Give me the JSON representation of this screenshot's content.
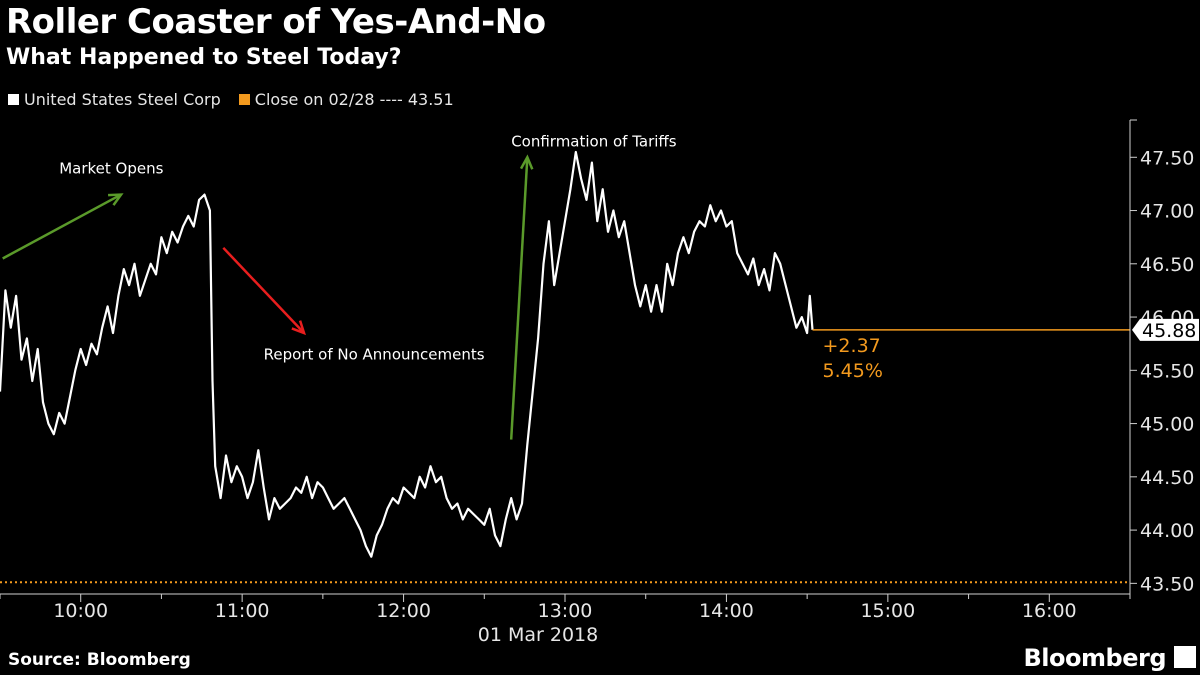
{
  "header": {
    "title": "Roller Coaster of Yes-And-No",
    "subtitle": "What Happened to Steel Today?"
  },
  "legend": {
    "series_label": "United States Steel Corp",
    "close_label": "Close on 02/28 ---- 43.51"
  },
  "footer": {
    "source": "Source: Bloomberg",
    "brand": "Bloomberg"
  },
  "colors": {
    "series": "#ffffff",
    "close_line": "#f39a1e",
    "arrow_up": "#5a9a2a",
    "arrow_down": "#e81e1e",
    "background": "#000000"
  },
  "chart_data": {
    "type": "line",
    "date_label": "01 Mar 2018",
    "x_unit": "time of day",
    "x_range": [
      "09:30",
      "16:30"
    ],
    "y_range": [
      43.4,
      47.85
    ],
    "x_ticks": [
      "10:00",
      "11:00",
      "12:00",
      "13:00",
      "14:00",
      "15:00",
      "16:00"
    ],
    "y_ticks": [
      "43.50",
      "44.00",
      "44.50",
      "45.00",
      "45.50",
      "46.00",
      "46.50",
      "47.00",
      "47.50"
    ],
    "series": [
      {
        "name": "United States Steel Corp",
        "points": [
          [
            "09:30",
            45.3
          ],
          [
            "09:32",
            46.25
          ],
          [
            "09:34",
            45.9
          ],
          [
            "09:36",
            46.2
          ],
          [
            "09:38",
            45.6
          ],
          [
            "09:40",
            45.8
          ],
          [
            "09:42",
            45.4
          ],
          [
            "09:44",
            45.7
          ],
          [
            "09:46",
            45.2
          ],
          [
            "09:48",
            45.0
          ],
          [
            "09:50",
            44.9
          ],
          [
            "09:52",
            45.1
          ],
          [
            "09:54",
            45.0
          ],
          [
            "09:56",
            45.25
          ],
          [
            "09:58",
            45.5
          ],
          [
            "10:00",
            45.7
          ],
          [
            "10:02",
            45.55
          ],
          [
            "10:04",
            45.75
          ],
          [
            "10:06",
            45.65
          ],
          [
            "10:08",
            45.9
          ],
          [
            "10:10",
            46.1
          ],
          [
            "10:12",
            45.85
          ],
          [
            "10:14",
            46.2
          ],
          [
            "10:16",
            46.45
          ],
          [
            "10:18",
            46.3
          ],
          [
            "10:20",
            46.5
          ],
          [
            "10:22",
            46.2
          ],
          [
            "10:24",
            46.35
          ],
          [
            "10:26",
            46.5
          ],
          [
            "10:28",
            46.4
          ],
          [
            "10:30",
            46.75
          ],
          [
            "10:32",
            46.6
          ],
          [
            "10:34",
            46.8
          ],
          [
            "10:36",
            46.7
          ],
          [
            "10:38",
            46.85
          ],
          [
            "10:40",
            46.95
          ],
          [
            "10:42",
            46.85
          ],
          [
            "10:44",
            47.1
          ],
          [
            "10:46",
            47.15
          ],
          [
            "10:48",
            47.0
          ],
          [
            "10:49",
            45.4
          ],
          [
            "10:50",
            44.6
          ],
          [
            "10:52",
            44.3
          ],
          [
            "10:54",
            44.7
          ],
          [
            "10:56",
            44.45
          ],
          [
            "10:58",
            44.6
          ],
          [
            "11:00",
            44.5
          ],
          [
            "11:02",
            44.3
          ],
          [
            "11:04",
            44.45
          ],
          [
            "11:06",
            44.75
          ],
          [
            "11:08",
            44.4
          ],
          [
            "11:10",
            44.1
          ],
          [
            "11:12",
            44.3
          ],
          [
            "11:14",
            44.2
          ],
          [
            "11:16",
            44.25
          ],
          [
            "11:18",
            44.3
          ],
          [
            "11:20",
            44.4
          ],
          [
            "11:22",
            44.35
          ],
          [
            "11:24",
            44.5
          ],
          [
            "11:26",
            44.3
          ],
          [
            "11:28",
            44.45
          ],
          [
            "11:30",
            44.4
          ],
          [
            "11:32",
            44.3
          ],
          [
            "11:34",
            44.2
          ],
          [
            "11:36",
            44.25
          ],
          [
            "11:38",
            44.3
          ],
          [
            "11:40",
            44.2
          ],
          [
            "11:42",
            44.1
          ],
          [
            "11:44",
            44.0
          ],
          [
            "11:46",
            43.85
          ],
          [
            "11:48",
            43.75
          ],
          [
            "11:50",
            43.95
          ],
          [
            "11:52",
            44.05
          ],
          [
            "11:54",
            44.2
          ],
          [
            "11:56",
            44.3
          ],
          [
            "11:58",
            44.25
          ],
          [
            "12:00",
            44.4
          ],
          [
            "12:02",
            44.35
          ],
          [
            "12:04",
            44.3
          ],
          [
            "12:06",
            44.5
          ],
          [
            "12:08",
            44.4
          ],
          [
            "12:10",
            44.6
          ],
          [
            "12:12",
            44.45
          ],
          [
            "12:14",
            44.5
          ],
          [
            "12:16",
            44.3
          ],
          [
            "12:18",
            44.2
          ],
          [
            "12:20",
            44.25
          ],
          [
            "12:22",
            44.1
          ],
          [
            "12:24",
            44.2
          ],
          [
            "12:26",
            44.15
          ],
          [
            "12:28",
            44.1
          ],
          [
            "12:30",
            44.05
          ],
          [
            "12:32",
            44.2
          ],
          [
            "12:34",
            43.95
          ],
          [
            "12:36",
            43.85
          ],
          [
            "12:38",
            44.1
          ],
          [
            "12:40",
            44.3
          ],
          [
            "12:42",
            44.1
          ],
          [
            "12:44",
            44.25
          ],
          [
            "12:46",
            44.8
          ],
          [
            "12:48",
            45.3
          ],
          [
            "12:50",
            45.8
          ],
          [
            "12:52",
            46.5
          ],
          [
            "12:54",
            46.9
          ],
          [
            "12:56",
            46.3
          ],
          [
            "12:58",
            46.6
          ],
          [
            "13:00",
            46.9
          ],
          [
            "13:02",
            47.2
          ],
          [
            "13:04",
            47.55
          ],
          [
            "13:06",
            47.3
          ],
          [
            "13:08",
            47.1
          ],
          [
            "13:10",
            47.45
          ],
          [
            "13:12",
            46.9
          ],
          [
            "13:14",
            47.2
          ],
          [
            "13:16",
            46.8
          ],
          [
            "13:18",
            47.0
          ],
          [
            "13:20",
            46.75
          ],
          [
            "13:22",
            46.9
          ],
          [
            "13:24",
            46.6
          ],
          [
            "13:26",
            46.3
          ],
          [
            "13:28",
            46.1
          ],
          [
            "13:30",
            46.3
          ],
          [
            "13:32",
            46.05
          ],
          [
            "13:34",
            46.3
          ],
          [
            "13:36",
            46.05
          ],
          [
            "13:38",
            46.5
          ],
          [
            "13:40",
            46.3
          ],
          [
            "13:42",
            46.6
          ],
          [
            "13:44",
            46.75
          ],
          [
            "13:46",
            46.6
          ],
          [
            "13:48",
            46.8
          ],
          [
            "13:50",
            46.9
          ],
          [
            "13:52",
            46.85
          ],
          [
            "13:54",
            47.05
          ],
          [
            "13:56",
            46.9
          ],
          [
            "13:58",
            47.0
          ],
          [
            "14:00",
            46.85
          ],
          [
            "14:02",
            46.9
          ],
          [
            "14:04",
            46.6
          ],
          [
            "14:06",
            46.5
          ],
          [
            "14:08",
            46.4
          ],
          [
            "14:10",
            46.55
          ],
          [
            "14:12",
            46.3
          ],
          [
            "14:14",
            46.45
          ],
          [
            "14:16",
            46.25
          ],
          [
            "14:18",
            46.6
          ],
          [
            "14:20",
            46.5
          ],
          [
            "14:22",
            46.3
          ],
          [
            "14:24",
            46.1
          ],
          [
            "14:26",
            45.9
          ],
          [
            "14:28",
            46.0
          ],
          [
            "14:30",
            45.85
          ],
          [
            "14:31",
            46.2
          ],
          [
            "14:32",
            45.88
          ]
        ]
      }
    ],
    "reference_line": {
      "label": "Close on 02/28",
      "value": 43.51,
      "style": "dotted"
    },
    "last_value": {
      "label": "45.88",
      "value": 45.88
    },
    "change": {
      "absolute": "+2.37",
      "percent": "5.45%"
    },
    "annotations": [
      {
        "text": "Market Opens",
        "time": "09:52",
        "price": 47.35,
        "arrow": "up",
        "arrow_from": [
          "09:31",
          46.55
        ],
        "arrow_to": [
          "10:15",
          47.15
        ]
      },
      {
        "text": "Report of No Announcements",
        "time": "11:08",
        "price": 45.6,
        "arrow": "down",
        "arrow_from": [
          "10:53",
          46.65
        ],
        "arrow_to": [
          "11:23",
          45.85
        ]
      },
      {
        "text": "Confirmation of Tariffs",
        "time": "12:40",
        "price": 47.6,
        "arrow": "up",
        "arrow_from": [
          "12:40",
          44.85
        ],
        "arrow_to": [
          "12:46",
          47.5
        ]
      }
    ],
    "grid": false,
    "legend_position": "top-left"
  }
}
